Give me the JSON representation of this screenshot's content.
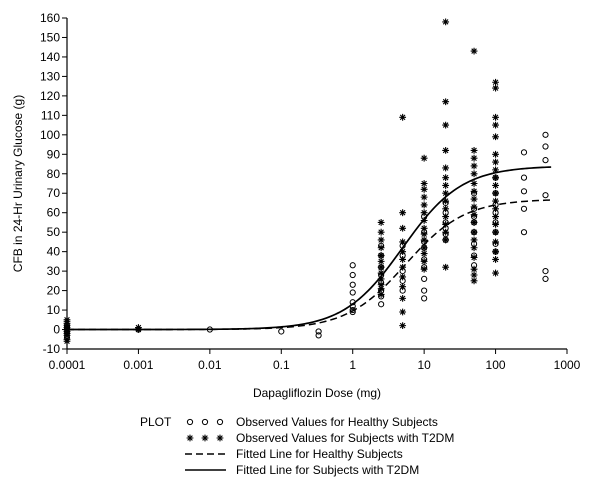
{
  "chart_data": {
    "type": "scatter",
    "title": "",
    "xlabel": "Dapagliflozin Dose (mg)",
    "ylabel": "CFB in 24-Hr Urinary Glucose (g)",
    "x_scale": "log",
    "xlim": [
      0.0001,
      1000
    ],
    "ylim": [
      -10,
      160
    ],
    "x_ticks": [
      0.0001,
      0.001,
      0.01,
      0.1,
      1,
      10,
      100,
      1000
    ],
    "x_tick_labels": [
      "0.0001",
      "0.001",
      "0.01",
      "0.1",
      "1",
      "10",
      "100",
      "1000"
    ],
    "y_ticks": [
      -10,
      0,
      10,
      20,
      30,
      40,
      50,
      60,
      70,
      80,
      90,
      100,
      110,
      120,
      130,
      140,
      150,
      160
    ],
    "y_tick_labels": [
      "-10",
      "0",
      "10",
      "20",
      "30",
      "40",
      "50",
      "60",
      "70",
      "80",
      "90",
      "100",
      "110",
      "120",
      "130",
      "140",
      "150",
      "160"
    ],
    "grid": false,
    "legend_title": "PLOT",
    "legend_position": "bottom",
    "series": [
      {
        "name": "Observed Values for Healthy Subjects",
        "marker": "open-circle",
        "points": [
          [
            0.0001,
            2
          ],
          [
            0.0001,
            0
          ],
          [
            0.0001,
            -2
          ],
          [
            0.0001,
            -4
          ],
          [
            0.0001,
            1
          ],
          [
            0.001,
            0
          ],
          [
            0.01,
            0
          ],
          [
            0.1,
            -1
          ],
          [
            0.333,
            -1
          ],
          [
            0.333,
            -3
          ],
          [
            1,
            33
          ],
          [
            1,
            28
          ],
          [
            1,
            23
          ],
          [
            1,
            19
          ],
          [
            1,
            14
          ],
          [
            1,
            12
          ],
          [
            1,
            10
          ],
          [
            1,
            9
          ],
          [
            2.5,
            43
          ],
          [
            2.5,
            38
          ],
          [
            2.5,
            32
          ],
          [
            2.5,
            28
          ],
          [
            2.5,
            24
          ],
          [
            2.5,
            20
          ],
          [
            2.5,
            17
          ],
          [
            2.5,
            13
          ],
          [
            5,
            43
          ],
          [
            5,
            38
          ],
          [
            5,
            30
          ],
          [
            5,
            25
          ],
          [
            5,
            20
          ],
          [
            10,
            58
          ],
          [
            10,
            50
          ],
          [
            10,
            45
          ],
          [
            10,
            42
          ],
          [
            10,
            36
          ],
          [
            10,
            32
          ],
          [
            10,
            26
          ],
          [
            10,
            20
          ],
          [
            10,
            16
          ],
          [
            20,
            65
          ],
          [
            20,
            60
          ],
          [
            20,
            55
          ],
          [
            20,
            52
          ],
          [
            20,
            49
          ],
          [
            20,
            46
          ],
          [
            50,
            70
          ],
          [
            50,
            62
          ],
          [
            50,
            58
          ],
          [
            50,
            55
          ],
          [
            50,
            50
          ],
          [
            50,
            44
          ],
          [
            50,
            38
          ],
          [
            50,
            33
          ],
          [
            100,
            78
          ],
          [
            100,
            70
          ],
          [
            100,
            64
          ],
          [
            100,
            60
          ],
          [
            100,
            55
          ],
          [
            100,
            50
          ],
          [
            100,
            44
          ],
          [
            100,
            40
          ],
          [
            250,
            91
          ],
          [
            250,
            78
          ],
          [
            250,
            71
          ],
          [
            250,
            62
          ],
          [
            250,
            50
          ],
          [
            500,
            100
          ],
          [
            500,
            94
          ],
          [
            500,
            87
          ],
          [
            500,
            69
          ],
          [
            500,
            30
          ],
          [
            500,
            26
          ]
        ]
      },
      {
        "name": "Observed Values for Subjects with T2DM",
        "marker": "asterisk",
        "points": [
          [
            0.0001,
            5
          ],
          [
            0.0001,
            4
          ],
          [
            0.0001,
            3
          ],
          [
            0.0001,
            2
          ],
          [
            0.0001,
            1
          ],
          [
            0.0001,
            0
          ],
          [
            0.0001,
            -1
          ],
          [
            0.0001,
            -2
          ],
          [
            0.0001,
            -3
          ],
          [
            0.0001,
            -5
          ],
          [
            0.0001,
            -6
          ],
          [
            0.001,
            1
          ],
          [
            0.001,
            0
          ],
          [
            2.5,
            55
          ],
          [
            2.5,
            50
          ],
          [
            2.5,
            46
          ],
          [
            2.5,
            42
          ],
          [
            2.5,
            38
          ],
          [
            2.5,
            35
          ],
          [
            2.5,
            32
          ],
          [
            2.5,
            29
          ],
          [
            2.5,
            26
          ],
          [
            2.5,
            23
          ],
          [
            2.5,
            21
          ],
          [
            2.5,
            18
          ],
          [
            5,
            109
          ],
          [
            5,
            60
          ],
          [
            5,
            52
          ],
          [
            5,
            45
          ],
          [
            5,
            40
          ],
          [
            5,
            36
          ],
          [
            5,
            32
          ],
          [
            5,
            27
          ],
          [
            5,
            22
          ],
          [
            5,
            16
          ],
          [
            5,
            9
          ],
          [
            5,
            2
          ],
          [
            10,
            88
          ],
          [
            10,
            75
          ],
          [
            10,
            72
          ],
          [
            10,
            68
          ],
          [
            10,
            64
          ],
          [
            10,
            60
          ],
          [
            10,
            56
          ],
          [
            10,
            52
          ],
          [
            10,
            49
          ],
          [
            10,
            46
          ],
          [
            10,
            42
          ],
          [
            10,
            39
          ],
          [
            10,
            35
          ],
          [
            10,
            31
          ],
          [
            20,
            158
          ],
          [
            20,
            117
          ],
          [
            20,
            105
          ],
          [
            20,
            92
          ],
          [
            20,
            83
          ],
          [
            20,
            78
          ],
          [
            20,
            74
          ],
          [
            20,
            70
          ],
          [
            20,
            66
          ],
          [
            20,
            62
          ],
          [
            20,
            58
          ],
          [
            20,
            54
          ],
          [
            20,
            50
          ],
          [
            20,
            46
          ],
          [
            20,
            32
          ],
          [
            50,
            143
          ],
          [
            50,
            92
          ],
          [
            50,
            88
          ],
          [
            50,
            84
          ],
          [
            50,
            80
          ],
          [
            50,
            75
          ],
          [
            50,
            71
          ],
          [
            50,
            67
          ],
          [
            50,
            63
          ],
          [
            50,
            59
          ],
          [
            50,
            55
          ],
          [
            50,
            50
          ],
          [
            50,
            46
          ],
          [
            50,
            42
          ],
          [
            50,
            37
          ],
          [
            50,
            31
          ],
          [
            50,
            28
          ],
          [
            50,
            25
          ],
          [
            100,
            127
          ],
          [
            100,
            124
          ],
          [
            100,
            109
          ],
          [
            100,
            105
          ],
          [
            100,
            99
          ],
          [
            100,
            90
          ],
          [
            100,
            86
          ],
          [
            100,
            82
          ],
          [
            100,
            78
          ],
          [
            100,
            74
          ],
          [
            100,
            70
          ],
          [
            100,
            66
          ],
          [
            100,
            62
          ],
          [
            100,
            58
          ],
          [
            100,
            54
          ],
          [
            100,
            50
          ],
          [
            100,
            45
          ],
          [
            100,
            40
          ],
          [
            100,
            36
          ],
          [
            100,
            29
          ]
        ]
      },
      {
        "name": "Fitted Line for Healthy Subjects",
        "line_style": "dashed",
        "emax": 67,
        "ed50": 5.5,
        "hill": 1.05,
        "x_range": [
          0.0001,
          600
        ]
      },
      {
        "name": "Fitted Line for Subjects with T2DM",
        "line_style": "solid",
        "emax": 84,
        "ed50": 5.0,
        "hill": 1.05,
        "x_range": [
          0.0001,
          600
        ]
      }
    ]
  }
}
